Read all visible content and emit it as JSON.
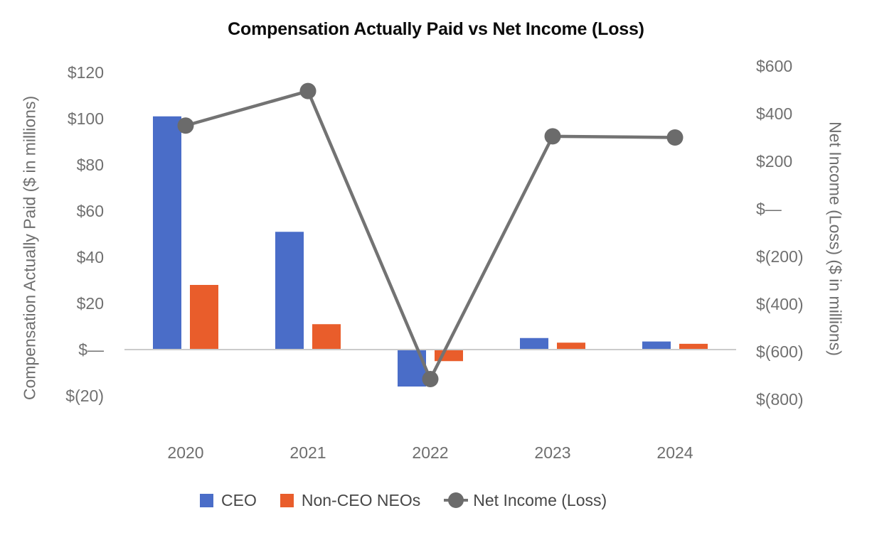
{
  "chart_data": {
    "type": "combo-bar-line",
    "title": "Compensation Actually Paid vs Net Income (Loss)",
    "categories": [
      "2020",
      "2021",
      "2022",
      "2023",
      "2024"
    ],
    "series": [
      {
        "name": "CEO",
        "type": "bar",
        "axis": "left",
        "color": "#4a6dc8",
        "values": [
          101,
          51,
          -16,
          5,
          3.5
        ]
      },
      {
        "name": "Non-CEO NEOs",
        "type": "bar",
        "axis": "left",
        "color": "#e95d2b",
        "values": [
          28,
          11,
          -5,
          3,
          2.5
        ]
      },
      {
        "name": "Net Income (Loss)",
        "type": "line",
        "axis": "right",
        "color": "#737373",
        "marker_color": "#6b6b6b",
        "values": [
          350,
          495,
          -715,
          305,
          300
        ]
      }
    ],
    "left_axis": {
      "title": "Compensation Actually Paid ($ in millions)",
      "tick_values": [
        120,
        100,
        80,
        60,
        40,
        20,
        0,
        -20
      ],
      "tick_labels": [
        "$120",
        "$100",
        "$80",
        "$60",
        "$40",
        "$20",
        "$—",
        "$(20)"
      ],
      "range": [
        -20,
        120
      ]
    },
    "right_axis": {
      "title": "Net Income (Loss) ($ in millions)",
      "tick_values": [
        600,
        400,
        200,
        0,
        -200,
        -400,
        -600,
        -800
      ],
      "tick_labels": [
        "$600",
        "$400",
        "$200",
        "$—",
        "$(200)",
        "$(400)",
        "$(600)",
        "$(800)"
      ],
      "range": [
        -800,
        600
      ]
    },
    "legend": {
      "position": "bottom",
      "items": [
        "CEO",
        "Non-CEO NEOs",
        "Net Income (Loss)"
      ]
    },
    "gridlines": false,
    "baseline_color": "#cbcbcb",
    "background_color": "#ffffff"
  }
}
